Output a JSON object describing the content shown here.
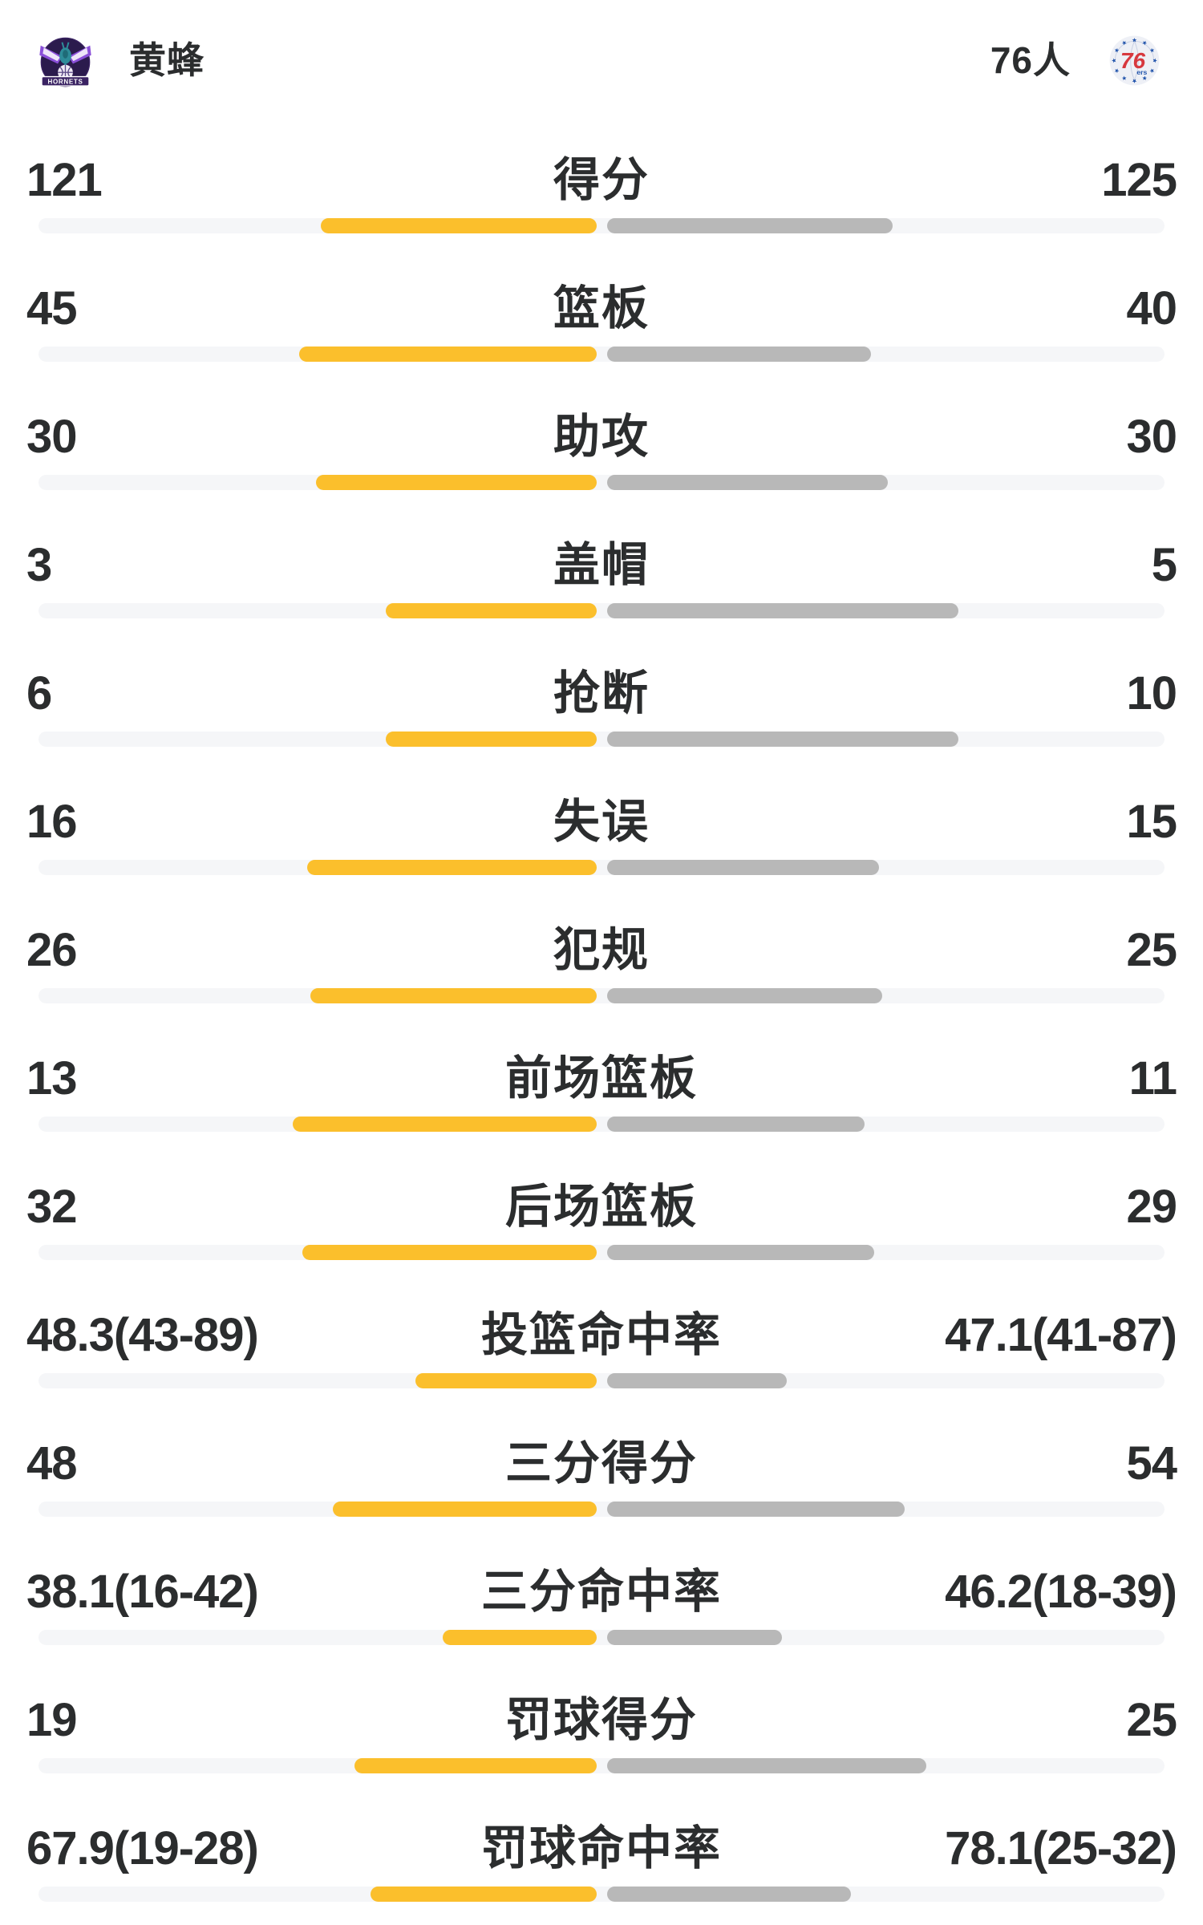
{
  "header": {
    "left_team": {
      "name": "黄蜂",
      "logo_text": "HORNETS"
    },
    "right_team": {
      "name": "76人",
      "logo_big": "76",
      "logo_small": "ers"
    }
  },
  "colors": {
    "background": "#ffffff",
    "text": "#2b2d2e",
    "bar_left": "#fbbf2c",
    "bar_right": "#b8b8b8",
    "track": "#f5f6f8",
    "hornets_purple": "#2b1b4d",
    "hornets_wing": "#8a4fd8",
    "hornets_teal": "#2e8c99",
    "sixers_blue": "#2456ad",
    "sixers_red": "#d7383e",
    "sixers_bg": "#eef0f6"
  },
  "chart_data": {
    "type": "bar",
    "layout": "mirrored-horizontal-from-center",
    "legend_left": "黄蜂",
    "legend_right": "76人",
    "track_width": 1404,
    "rows": [
      {
        "label": "得分",
        "left": "121",
        "right": "125",
        "left_bar": 344,
        "right_bar": 356
      },
      {
        "label": "篮板",
        "left": "45",
        "right": "40",
        "left_bar": 371,
        "right_bar": 329
      },
      {
        "label": "助攻",
        "left": "30",
        "right": "30",
        "left_bar": 350,
        "right_bar": 350
      },
      {
        "label": "盖帽",
        "left": "3",
        "right": "5",
        "left_bar": 263,
        "right_bar": 438
      },
      {
        "label": "抢断",
        "left": "6",
        "right": "10",
        "left_bar": 263,
        "right_bar": 438
      },
      {
        "label": "失误",
        "left": "16",
        "right": "15",
        "left_bar": 361,
        "right_bar": 339
      },
      {
        "label": "犯规",
        "left": "26",
        "right": "25",
        "left_bar": 357,
        "right_bar": 343
      },
      {
        "label": "前场篮板",
        "left": "13",
        "right": "11",
        "left_bar": 379,
        "right_bar": 321
      },
      {
        "label": "后场篮板",
        "left": "32",
        "right": "29",
        "left_bar": 367,
        "right_bar": 333
      },
      {
        "label": "投篮命中率",
        "left": "48.3(43-89)",
        "right": "47.1(41-87)",
        "left_bar": 226,
        "right_bar": 224
      },
      {
        "label": "三分得分",
        "left": "48",
        "right": "54",
        "left_bar": 329,
        "right_bar": 371
      },
      {
        "label": "三分命中率",
        "left": "38.1(16-42)",
        "right": "46.2(18-39)",
        "left_bar": 192,
        "right_bar": 218
      },
      {
        "label": "罚球得分",
        "left": "19",
        "right": "25",
        "left_bar": 302,
        "right_bar": 398
      },
      {
        "label": "罚球命中率",
        "left": "67.9(19-28)",
        "right": "78.1(25-32)",
        "left_bar": 282,
        "right_bar": 304
      }
    ]
  }
}
